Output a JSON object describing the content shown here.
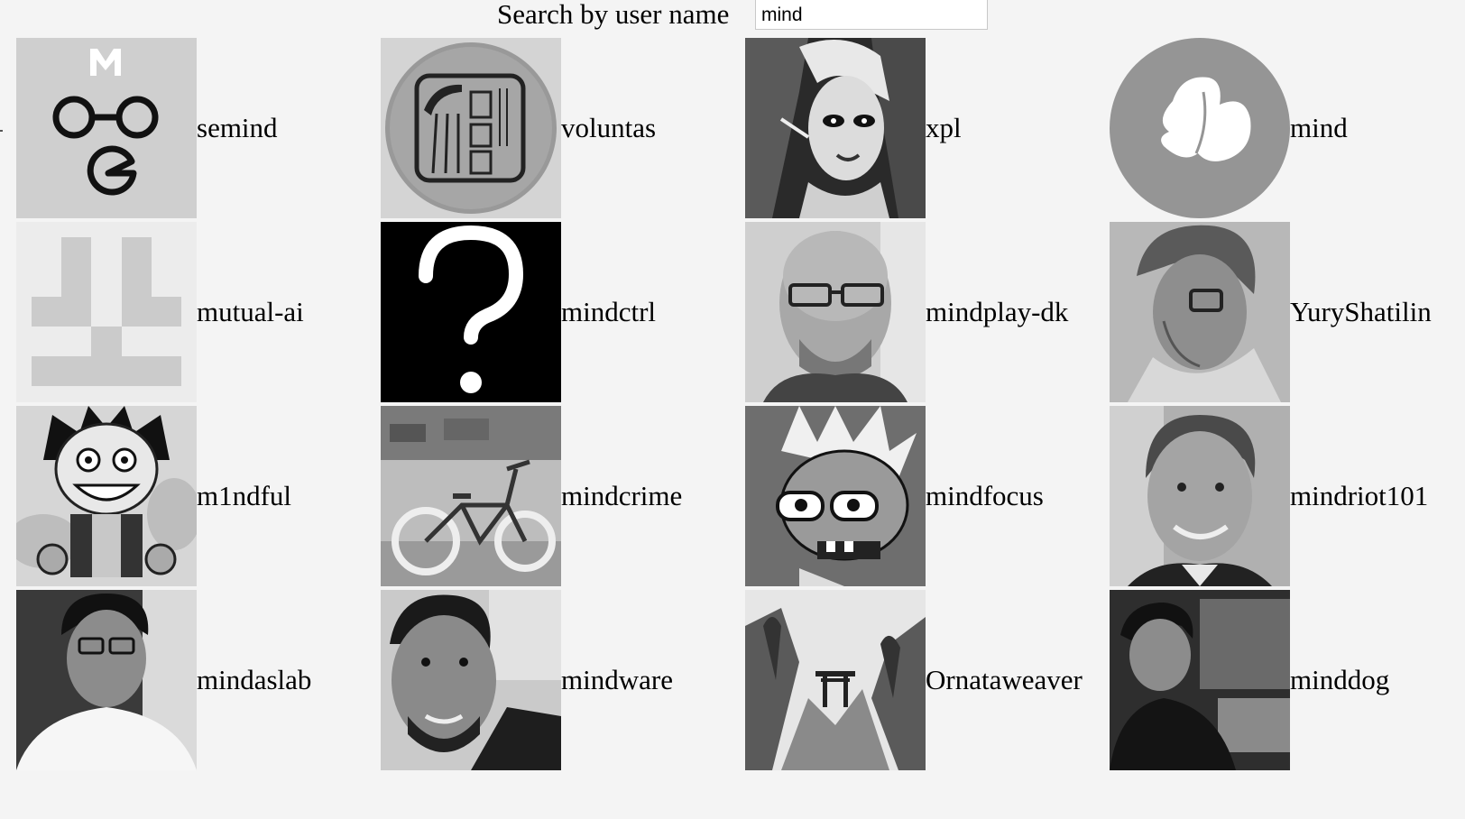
{
  "search": {
    "label": "Search by user name",
    "value": "mind"
  },
  "users": [
    {
      "name": "semind",
      "avatar": "pixel-glasses-avatar"
    },
    {
      "name": "voluntas",
      "avatar": "stamp-seal-avatar"
    },
    {
      "name": "xpl",
      "avatar": "illustrated-woman-avatar"
    },
    {
      "name": "mind",
      "avatar": "butterfly-circle-avatar"
    },
    {
      "name": "mutual-ai",
      "avatar": "identicon-avatar"
    },
    {
      "name": "mindctrl",
      "avatar": "question-mark-avatar"
    },
    {
      "name": "mindplay-dk",
      "avatar": "bald-man-glasses-avatar"
    },
    {
      "name": "YuryShatilin",
      "avatar": "man-glasses-sketch-avatar"
    },
    {
      "name": "m1ndful",
      "avatar": "cartoon-pirate-avatar"
    },
    {
      "name": "mindcrime",
      "avatar": "bicycle-avatar"
    },
    {
      "name": "mindfocus",
      "avatar": "cartoon-zombie-avatar"
    },
    {
      "name": "mindriot101",
      "avatar": "smiling-man-avatar"
    },
    {
      "name": "mindaslab",
      "avatar": "man-white-shirt-avatar"
    },
    {
      "name": "mindware",
      "avatar": "bearded-man-selfie-avatar"
    },
    {
      "name": "Ornataweaver",
      "avatar": "misty-landscape-avatar"
    },
    {
      "name": "minddog",
      "avatar": "man-dark-room-avatar"
    }
  ]
}
